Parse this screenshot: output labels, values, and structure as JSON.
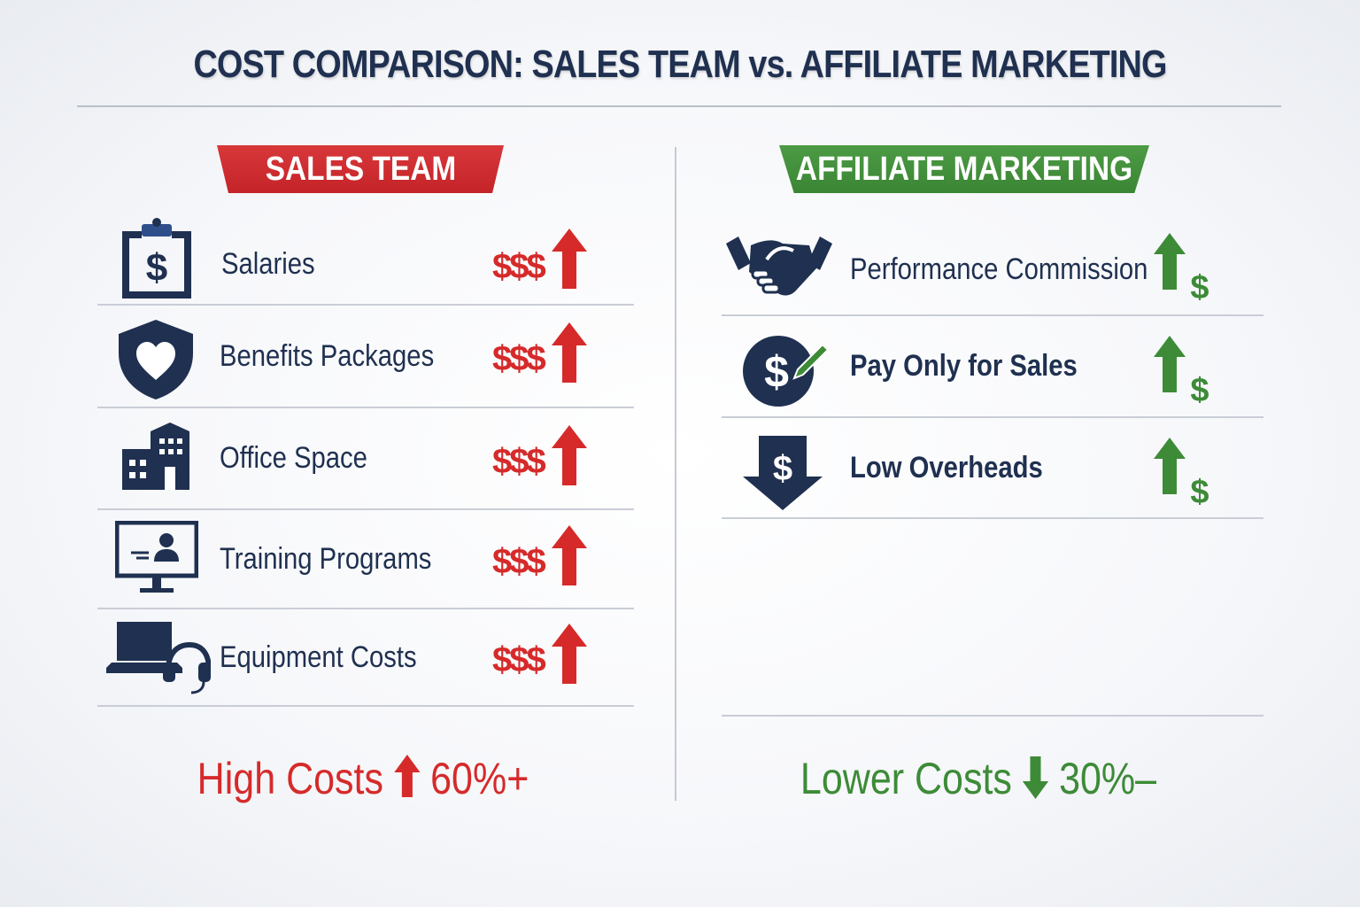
{
  "title": "COST COMPARISON: SALES TEAM vs. AFFILIATE MARKETING",
  "colors": {
    "navy": "#1f3050",
    "red": "#d62a2a",
    "green": "#3d8b37"
  },
  "sales_team": {
    "header": "SALES TEAM",
    "items": [
      {
        "label": "Salaries",
        "icon": "clipboard-dollar-icon",
        "cost": "$$$",
        "trend": "up-arrow"
      },
      {
        "label": "Benefits Packages",
        "icon": "shield-heart-icon",
        "cost": "$$$",
        "trend": "up-arrow"
      },
      {
        "label": "Office Space",
        "icon": "office-building-icon",
        "cost": "$$$",
        "trend": "up-arrow"
      },
      {
        "label": "Training Programs",
        "icon": "monitor-presentation-icon",
        "cost": "$$$",
        "trend": "up-arrow"
      },
      {
        "label": "Equipment Costs",
        "icon": "laptop-headset-icon",
        "cost": "$$$",
        "trend": "up-arrow"
      }
    ],
    "summary": {
      "label": "High Costs",
      "value": "60%+",
      "trend": "up-arrow"
    }
  },
  "affiliate": {
    "header": "AFFILIATE MARKETING",
    "items": [
      {
        "label": "Performance Commission",
        "icon": "handshake-icon",
        "cost": "$",
        "trend": "up-arrow"
      },
      {
        "label": "Pay Only for Sales",
        "icon": "dollar-check-icon",
        "cost": "$",
        "trend": "up-arrow"
      },
      {
        "label": "Low Overheads",
        "icon": "down-arrow-dollar-icon",
        "cost": "$",
        "trend": "up-arrow"
      }
    ],
    "summary": {
      "label": "Lower Costs",
      "value": "30%–",
      "trend": "down-arrow"
    }
  }
}
